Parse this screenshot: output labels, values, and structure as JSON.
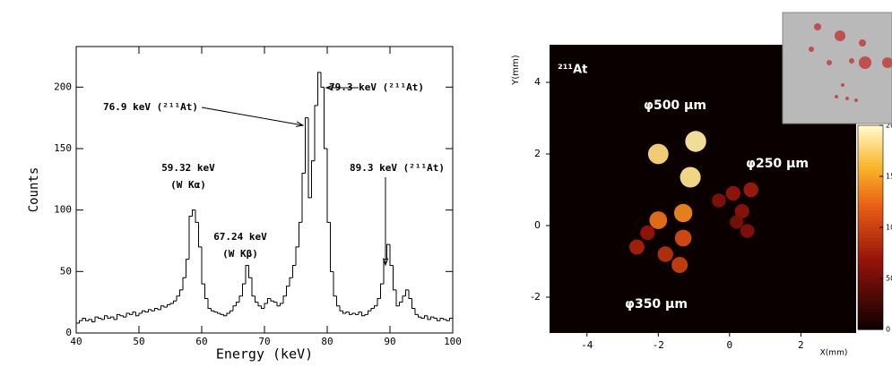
{
  "chart_data": [
    {
      "type": "histogram",
      "xlabel": "Energy (keV)",
      "ylabel": "Counts",
      "bins": [
        40,
        40.5,
        41,
        41.5,
        42,
        42.5,
        43,
        43.5,
        44,
        44.5,
        45,
        45.5,
        46,
        46.5,
        47,
        47.5,
        48,
        48.5,
        49,
        49.5,
        50,
        50.5,
        51,
        51.5,
        52,
        52.5,
        53,
        53.5,
        54,
        54.5,
        55,
        55.5,
        56,
        56.5,
        57,
        57.5,
        58,
        58.5,
        59,
        59.5,
        60,
        60.5,
        61,
        61.5,
        62,
        62.5,
        63,
        63.5,
        64,
        64.5,
        65,
        65.5,
        66,
        66.5,
        67,
        67.5,
        68,
        68.5,
        69,
        69.5,
        70,
        70.5,
        71,
        71.5,
        72,
        72.5,
        73,
        73.5,
        74,
        74.5,
        75,
        75.5,
        76,
        76.5,
        77,
        77.5,
        78,
        78.5,
        79,
        79.5,
        80,
        80.5,
        81,
        81.5,
        82,
        82.5,
        83,
        83.5,
        84,
        84.5,
        85,
        85.5,
        86,
        86.5,
        87,
        87.5,
        88,
        88.5,
        89,
        89.5,
        90,
        90.5,
        91,
        91.5,
        92,
        92.5,
        93,
        93.5,
        94,
        94.5,
        95,
        95.5,
        96,
        96.5,
        97,
        97.5,
        98,
        98.5,
        99,
        99.5,
        100
      ],
      "values": [
        8,
        10,
        12,
        10,
        11,
        9,
        13,
        12,
        11,
        14,
        12,
        13,
        11,
        15,
        14,
        13,
        16,
        15,
        17,
        14,
        16,
        18,
        17,
        19,
        18,
        20,
        19,
        22,
        21,
        23,
        24,
        26,
        30,
        35,
        45,
        60,
        95,
        100,
        90,
        70,
        40,
        28,
        20,
        18,
        17,
        16,
        15,
        14,
        16,
        18,
        22,
        25,
        30,
        40,
        55,
        45,
        30,
        25,
        22,
        20,
        24,
        28,
        26,
        25,
        22,
        24,
        30,
        38,
        45,
        55,
        70,
        90,
        130,
        175,
        110,
        140,
        185,
        212,
        200,
        150,
        90,
        50,
        30,
        22,
        18,
        16,
        17,
        15,
        16,
        15,
        17,
        14,
        15,
        18,
        20,
        22,
        28,
        40,
        60,
        72,
        55,
        35,
        22,
        25,
        30,
        35,
        28,
        20,
        15,
        13,
        12,
        14,
        11,
        13,
        12,
        10,
        12,
        11,
        10,
        12
      ],
      "color": "#000000",
      "xlim": [
        40,
        100
      ],
      "ylim": [
        0,
        233
      ],
      "xticks": [
        40,
        50,
        60,
        70,
        80,
        90,
        100
      ],
      "yticks": [
        0,
        50,
        100,
        150,
        200
      ],
      "annotations": [
        "76.9 keV (²¹¹At)",
        "79.3 keV (²¹¹At)",
        "59.32 keV",
        "(W Kα)",
        "67.24 keV",
        "(W Kβ)",
        "89.3 keV (²¹¹At)"
      ]
    },
    {
      "type": "heatmap",
      "xlabel": "X(mm)",
      "ylabel": "Y(mm)",
      "xlim": [
        -5.05,
        3.55
      ],
      "ylim": [
        -3,
        5.05
      ],
      "xticks": [
        -4,
        -2,
        0,
        2
      ],
      "yticks": [
        -2,
        0,
        2,
        4
      ],
      "spots": [
        {
          "x": -2.0,
          "y": 2.0,
          "intensity": 180
        },
        {
          "x": -0.95,
          "y": 2.35,
          "intensity": 190
        },
        {
          "x": -1.1,
          "y": 1.35,
          "intensity": 185
        },
        {
          "x": -1.3,
          "y": 0.35,
          "intensity": 140
        },
        {
          "x": -2.0,
          "y": 0.15,
          "intensity": 130
        },
        {
          "x": -2.6,
          "y": -0.6,
          "intensity": 80
        },
        {
          "x": -1.3,
          "y": -0.35,
          "intensity": 110
        },
        {
          "x": -1.8,
          "y": -0.8,
          "intensity": 90
        },
        {
          "x": -1.4,
          "y": -1.1,
          "intensity": 100
        },
        {
          "x": -0.3,
          "y": 0.7,
          "intensity": 60
        },
        {
          "x": 0.1,
          "y": 0.9,
          "intensity": 70
        },
        {
          "x": 0.6,
          "y": 1.0,
          "intensity": 75
        },
        {
          "x": 0.35,
          "y": 0.4,
          "intensity": 65
        },
        {
          "x": 0.2,
          "y": 0.1,
          "intensity": 55
        },
        {
          "x": 0.5,
          "y": -0.15,
          "intensity": 60
        },
        {
          "x": -2.3,
          "y": -0.2,
          "intensity": 70
        }
      ],
      "clim": [
        0,
        200
      ],
      "cticks": [
        0,
        50,
        100,
        150,
        200
      ],
      "annotations": [
        "²¹¹At",
        "φ500 μm",
        "φ250 μm",
        "φ350 μm"
      ]
    }
  ]
}
